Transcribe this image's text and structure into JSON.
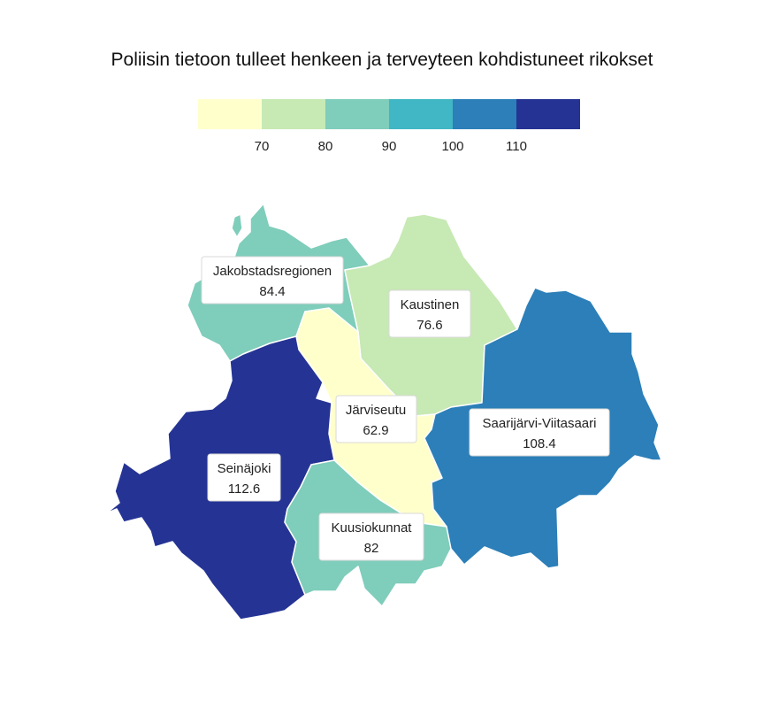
{
  "title": "Poliisin tietoon tulleet henkeen ja terveyteen kohdistuneet rikokset",
  "legend": {
    "colors": [
      "#ffffcc",
      "#c7e9b4",
      "#7fcdbb",
      "#41b6c4",
      "#2c7fb8",
      "#253494"
    ],
    "ticks": [
      "70",
      "80",
      "90",
      "100",
      "110"
    ]
  },
  "chart_data": {
    "type": "choropleth",
    "title": "Poliisin tietoon tulleet henkeen ja terveyteen kohdistuneet rikokset",
    "color_scale": {
      "breaks": [
        70,
        80,
        90,
        100,
        110
      ],
      "colors": [
        "#ffffcc",
        "#c7e9b4",
        "#7fcdbb",
        "#41b6c4",
        "#2c7fb8",
        "#253494"
      ]
    },
    "regions": [
      {
        "name": "Jakobstadsregionen",
        "value": "84.4"
      },
      {
        "name": "Kaustinen",
        "value": "76.6"
      },
      {
        "name": "Järviseutu",
        "value": "62.9"
      },
      {
        "name": "Saarijärvi-Viitasaari",
        "value": "108.4"
      },
      {
        "name": "Seinäjoki",
        "value": "112.6"
      },
      {
        "name": "Kuusiokunnat",
        "value": "82"
      }
    ]
  }
}
